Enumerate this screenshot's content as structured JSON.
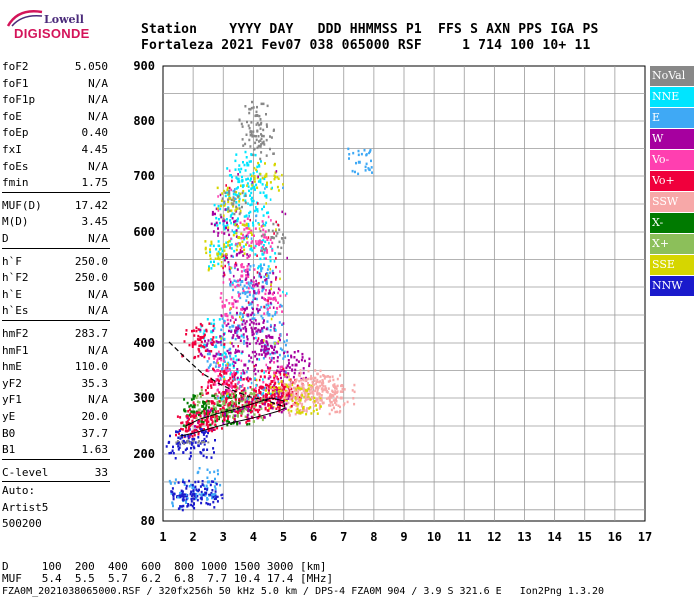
{
  "logo": {
    "line1": "Lowell",
    "line2": "DIGISONDE"
  },
  "header": {
    "labels": "Station    YYYY DAY   DDD HHMMSS P1  FFS S AXN PPS IGA PS",
    "values": "Fortaleza 2021 Fev07 038 065000 RSF     1 714 100 10+ 11"
  },
  "params_group1": [
    {
      "name": "foF2",
      "value": "5.050"
    },
    {
      "name": "foF1",
      "value": "N/A"
    },
    {
      "name": "foF1p",
      "value": "N/A"
    },
    {
      "name": "foE",
      "value": "N/A"
    },
    {
      "name": "foEp",
      "value": "0.40"
    },
    {
      "name": "fxI",
      "value": "4.45"
    },
    {
      "name": "foEs",
      "value": "N/A"
    },
    {
      "name": "fmin",
      "value": "1.75"
    }
  ],
  "params_group2": [
    {
      "name": "MUF(D)",
      "value": "17.42"
    },
    {
      "name": "M(D)",
      "value": "3.45"
    },
    {
      "name": "D",
      "value": "N/A"
    }
  ],
  "params_group3": [
    {
      "name": "h`F",
      "value": "250.0"
    },
    {
      "name": "h`F2",
      "value": "250.0"
    },
    {
      "name": "h`E",
      "value": "N/A"
    },
    {
      "name": "h`Es",
      "value": "N/A"
    }
  ],
  "params_group4": [
    {
      "name": "hmF2",
      "value": "283.7"
    },
    {
      "name": "hmF1",
      "value": "N/A"
    },
    {
      "name": "hmE",
      "value": "110.0"
    },
    {
      "name": "yF2",
      "value": "35.3"
    },
    {
      "name": "yF1",
      "value": "N/A"
    },
    {
      "name": "yE",
      "value": "20.0"
    },
    {
      "name": "B0",
      "value": "37.7"
    },
    {
      "name": "B1",
      "value": "1.63"
    }
  ],
  "params_group5": [
    {
      "name": "C-level",
      "value": "33"
    }
  ],
  "auto": {
    "line1": "Auto:",
    "line2": "Artist5",
    "line3": "500200"
  },
  "legend": [
    {
      "label": "NoVal",
      "color": "#888888"
    },
    {
      "label": "NNE",
      "color": "#00e5ff"
    },
    {
      "label": "E",
      "color": "#3fa9f5"
    },
    {
      "label": "W",
      "color": "#a6009f"
    },
    {
      "label": "Vo-",
      "color": "#ff3fb0"
    },
    {
      "label": "Vo+",
      "color": "#f0003c"
    },
    {
      "label": "SSW",
      "color": "#f7a8a8"
    },
    {
      "label": "X-",
      "color": "#007a00"
    },
    {
      "label": "X+",
      "color": "#8cbf5a"
    },
    {
      "label": "SSE",
      "color": "#d6d600"
    },
    {
      "label": "NNW",
      "color": "#1a1acc"
    }
  ],
  "footer": {
    "line1": "D     100  200  400  600  800 1000 1500 3000 [km]",
    "line2": "MUF   5.4  5.5  5.7  6.2  6.8  7.7 10.4 17.4 [MHz]",
    "line3": "FZA0M_2021038065000.RSF / 320fx256h 50 kHz 5.0 km / DPS-4 FZA0M 904 / 3.9 S 321.6 E   Ion2Png 1.3.20"
  },
  "chart_data": {
    "type": "scatter",
    "title": "",
    "xlabel": "",
    "ylabel": "",
    "xlim": [
      1,
      17
    ],
    "ylim": [
      80,
      900
    ],
    "x_ticks": [
      1,
      2,
      3,
      4,
      5,
      6,
      7,
      8,
      9,
      10,
      11,
      12,
      13,
      14,
      15,
      16,
      17
    ],
    "y_ticks": [
      80,
      200,
      300,
      400,
      500,
      600,
      700,
      800,
      900
    ],
    "grid": true,
    "legend_position": "right",
    "series": [
      {
        "name": "NNE",
        "points": [
          [
            2.9,
            560
          ],
          [
            3.1,
            640
          ],
          [
            3.5,
            690
          ],
          [
            3.8,
            720
          ],
          [
            4.1,
            640
          ],
          [
            4.3,
            560
          ],
          [
            3.4,
            600
          ],
          [
            4.0,
            680
          ],
          [
            2.6,
            420
          ],
          [
            3.2,
            360
          ]
        ]
      },
      {
        "name": "E",
        "points": [
          [
            3.6,
            510
          ],
          [
            3.9,
            470
          ],
          [
            4.2,
            520
          ],
          [
            4.5,
            450
          ],
          [
            3.3,
            430
          ],
          [
            2.8,
            380
          ],
          [
            4.7,
            400
          ],
          [
            7.5,
            725
          ],
          [
            1.6,
            130
          ],
          [
            2.5,
            150
          ]
        ]
      },
      {
        "name": "W",
        "points": [
          [
            3.0,
            620
          ],
          [
            3.4,
            540
          ],
          [
            3.8,
            450
          ],
          [
            4.1,
            420
          ],
          [
            4.4,
            380
          ],
          [
            4.6,
            410
          ],
          [
            4.9,
            350
          ],
          [
            5.4,
            360
          ],
          [
            2.6,
            400
          ],
          [
            3.7,
            360
          ],
          [
            4.3,
            500
          ],
          [
            3.5,
            410
          ]
        ]
      },
      {
        "name": "Vo-",
        "points": [
          [
            4.2,
            580
          ],
          [
            3.9,
            600
          ],
          [
            3.6,
            520
          ],
          [
            4.5,
            480
          ],
          [
            2.8,
            350
          ],
          [
            3.1,
            330
          ],
          [
            4.7,
            340
          ],
          [
            3.3,
            470
          ]
        ]
      },
      {
        "name": "Vo+",
        "points": [
          [
            2.0,
            400
          ],
          [
            2.3,
            410
          ],
          [
            2.6,
            330
          ],
          [
            3.0,
            310
          ],
          [
            3.4,
            320
          ],
          [
            3.8,
            300
          ],
          [
            4.2,
            310
          ],
          [
            4.6,
            330
          ],
          [
            5.0,
            320
          ],
          [
            1.8,
            255
          ],
          [
            2.2,
            270
          ],
          [
            3.2,
            290
          ],
          [
            4.4,
            295
          ],
          [
            5.2,
            305
          ]
        ]
      },
      {
        "name": "SSW",
        "points": [
          [
            5.3,
            305
          ],
          [
            5.7,
            310
          ],
          [
            6.1,
            320
          ],
          [
            6.5,
            300
          ],
          [
            6.9,
            300
          ],
          [
            5.9,
            335
          ],
          [
            6.3,
            315
          ],
          [
            5.5,
            295
          ]
        ]
      },
      {
        "name": "X-",
        "points": [
          [
            2.3,
            285
          ],
          [
            2.7,
            280
          ],
          [
            3.1,
            278
          ],
          [
            3.5,
            282
          ],
          [
            2.0,
            275
          ]
        ]
      },
      {
        "name": "X+",
        "points": [
          [
            3.0,
            290
          ],
          [
            3.6,
            295
          ],
          [
            4.0,
            285
          ],
          [
            2.5,
            290
          ]
        ]
      },
      {
        "name": "SSE",
        "points": [
          [
            3.2,
            660
          ],
          [
            3.5,
            590
          ],
          [
            4.4,
            700
          ],
          [
            2.8,
            560
          ],
          [
            4.8,
            310
          ],
          [
            5.4,
            300
          ],
          [
            5.8,
            300
          ]
        ]
      },
      {
        "name": "NNW",
        "points": [
          [
            1.5,
            220
          ],
          [
            1.9,
            220
          ],
          [
            2.3,
            222
          ],
          [
            1.6,
            125
          ],
          [
            2.0,
            128
          ],
          [
            2.4,
            130
          ]
        ]
      },
      {
        "name": "NoVal",
        "points": [
          [
            4.3,
            760
          ],
          [
            3.9,
            780
          ],
          [
            4.1,
            810
          ],
          [
            4.6,
            590
          ],
          [
            3.3,
            650
          ]
        ]
      }
    ]
  }
}
